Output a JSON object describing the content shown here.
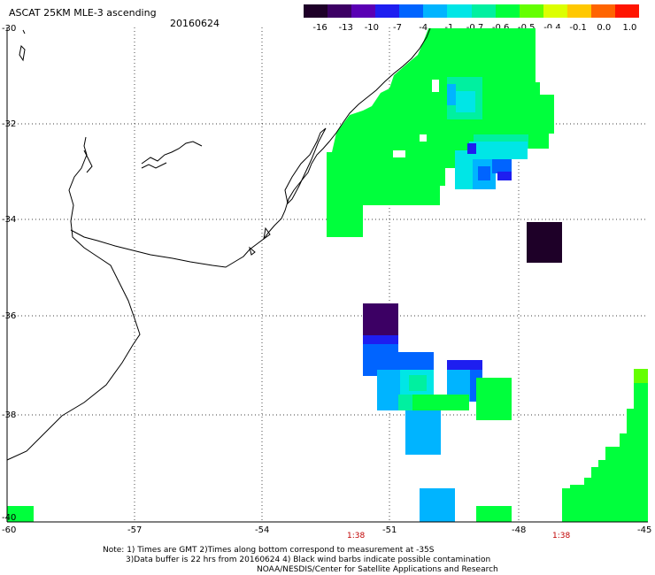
{
  "header": {
    "title": "ASCAT 25KM MLE-3 ascending",
    "date": "20160624"
  },
  "colorbar": {
    "labels": [
      "-16",
      "-13",
      "-10",
      "-7",
      "-4",
      "-1",
      "-0.7",
      "-0.6",
      "-0.5",
      "-0.4",
      "-0.1",
      "0.0",
      "1.0"
    ],
    "colors": [
      "#1e0028",
      "#3c0064",
      "#5a00b4",
      "#1e1ef0",
      "#0064ff",
      "#00b4ff",
      "#00e6e6",
      "#00f0a0",
      "#00ff3c",
      "#64ff00",
      "#dcff00",
      "#ffc800",
      "#ff6400",
      "#ff1400"
    ]
  },
  "axes": {
    "lat_labels": [
      "-30",
      "-32",
      "-34",
      "-36",
      "-38",
      "-40"
    ],
    "lon_labels": [
      "-60",
      "-57",
      "-54",
      "-51",
      "-48",
      "-45"
    ]
  },
  "time_labels": [
    "1:38",
    "1:38"
  ],
  "notes": [
    "Note: 1) Times are GMT 2)Times along bottom correspond to measurement at -35S",
    "3)Data buffer is 22 hrs from 20160624 4) Black wind barbs indicate possible contamination",
    "NOAA/NESDIS/Center for Satellite Applications and Research"
  ]
}
